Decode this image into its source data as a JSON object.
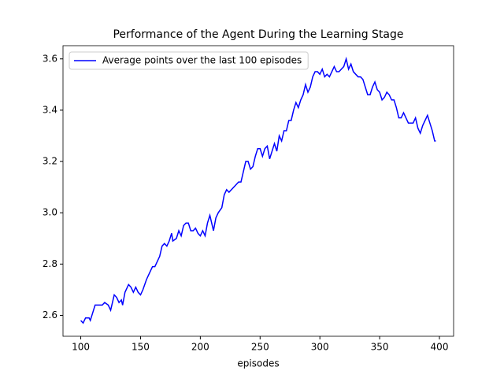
{
  "chart_data": {
    "type": "line",
    "title": "Performance of the Agent During the Learning Stage",
    "xlabel": "episodes",
    "x": [
      100,
      102,
      104,
      107,
      108,
      110,
      112,
      118,
      120,
      123,
      125,
      127,
      128,
      130,
      132,
      134,
      135,
      137,
      140,
      142,
      144,
      146,
      148,
      150,
      152,
      155,
      157,
      160,
      162,
      164,
      166,
      168,
      170,
      172,
      174,
      176,
      177,
      180,
      182,
      184,
      186,
      188,
      190,
      192,
      194,
      196,
      198,
      200,
      202,
      204,
      206,
      208,
      210,
      211,
      213,
      215,
      218,
      220,
      222,
      224,
      226,
      228,
      230,
      232,
      234,
      236,
      238,
      240,
      242,
      244,
      246,
      248,
      250,
      252,
      254,
      256,
      258,
      260,
      262,
      264,
      266,
      268,
      270,
      272,
      274,
      276,
      278,
      280,
      282,
      284,
      286,
      288,
      290,
      292,
      294,
      296,
      298,
      300,
      302,
      304,
      306,
      308,
      310,
      312,
      314,
      316,
      318,
      320,
      322,
      324,
      326,
      328,
      330,
      332,
      334,
      336,
      338,
      340,
      342,
      344,
      346,
      348,
      350,
      352,
      354,
      356,
      358,
      360,
      362,
      364,
      366,
      368,
      370,
      372,
      374,
      376,
      378,
      380,
      382,
      384,
      386,
      388,
      390,
      392,
      394,
      395,
      396,
      397
    ],
    "series": [
      {
        "name": "Average points over the last 100 episodes",
        "color": "#0000ff",
        "values": [
          2.58,
          2.57,
          2.59,
          2.59,
          2.58,
          2.61,
          2.64,
          2.64,
          2.65,
          2.64,
          2.62,
          2.66,
          2.68,
          2.67,
          2.65,
          2.66,
          2.64,
          2.69,
          2.72,
          2.71,
          2.69,
          2.71,
          2.69,
          2.68,
          2.7,
          2.74,
          2.76,
          2.79,
          2.79,
          2.81,
          2.83,
          2.87,
          2.88,
          2.87,
          2.89,
          2.92,
          2.89,
          2.9,
          2.93,
          2.91,
          2.95,
          2.96,
          2.96,
          2.93,
          2.93,
          2.94,
          2.92,
          2.91,
          2.93,
          2.91,
          2.96,
          2.99,
          2.95,
          2.93,
          2.98,
          3.0,
          3.02,
          3.07,
          3.09,
          3.08,
          3.09,
          3.1,
          3.11,
          3.12,
          3.12,
          3.16,
          3.2,
          3.2,
          3.17,
          3.18,
          3.22,
          3.25,
          3.25,
          3.22,
          3.25,
          3.26,
          3.21,
          3.24,
          3.27,
          3.24,
          3.3,
          3.28,
          3.32,
          3.32,
          3.36,
          3.36,
          3.4,
          3.43,
          3.41,
          3.44,
          3.46,
          3.5,
          3.47,
          3.49,
          3.53,
          3.55,
          3.55,
          3.54,
          3.56,
          3.53,
          3.54,
          3.53,
          3.55,
          3.57,
          3.55,
          3.55,
          3.56,
          3.57,
          3.6,
          3.56,
          3.58,
          3.55,
          3.54,
          3.53,
          3.53,
          3.52,
          3.49,
          3.46,
          3.46,
          3.49,
          3.51,
          3.48,
          3.47,
          3.44,
          3.45,
          3.47,
          3.46,
          3.44,
          3.44,
          3.41,
          3.37,
          3.37,
          3.39,
          3.37,
          3.35,
          3.35,
          3.35,
          3.37,
          3.33,
          3.31,
          3.34,
          3.36,
          3.38,
          3.35,
          3.32,
          3.3,
          3.28,
          3.28
        ]
      }
    ],
    "xlim": [
      85.15,
      411.85
    ],
    "ylim": [
      2.5185,
      3.6515
    ],
    "xticks": [
      100,
      150,
      200,
      250,
      300,
      350,
      400
    ],
    "yticks": [
      2.6,
      2.8,
      {
        "value": 3,
        "label": "3.0"
      },
      3.2,
      3.4,
      3.6
    ],
    "grid": false,
    "legend": "upper-left"
  }
}
